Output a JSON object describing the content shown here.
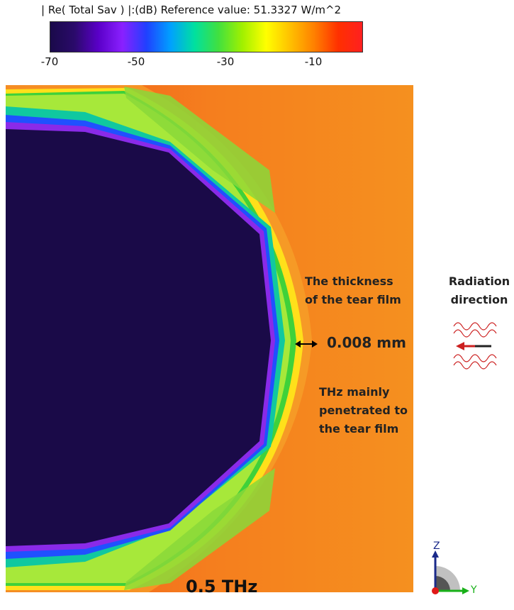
{
  "colorbar": {
    "title": "| Re( Total Sav ) |:(dB) Reference value: 51.3327 W/m^2",
    "ticks": [
      "-70",
      "-50",
      "-30",
      "-10"
    ],
    "min": -70,
    "max": 0,
    "tick_values": [
      -70,
      -50,
      -30,
      -10
    ],
    "gradient_colors": [
      "#1a0a4a",
      "#2a0a6a",
      "#5a00c8",
      "#8a20ff",
      "#2040ff",
      "#00a0ff",
      "#00e0a0",
      "#40e040",
      "#a0f000",
      "#ffff00",
      "#ffc000",
      "#ff8000",
      "#ff3000",
      "#ff2020"
    ]
  },
  "annotations": {
    "thickness_label_line1": "The thickness",
    "thickness_label_line2": "of the tear film",
    "thickness_value": "0.008 mm",
    "thz_line1": "THz mainly",
    "thz_line2": "penetrated to",
    "thz_line3": "the tear film",
    "frequency": "0.5 THz",
    "radiation_line1": "Radiation",
    "radiation_line2": "direction"
  },
  "axes": {
    "z_label": "Z",
    "y_label": "Y"
  },
  "colors": {
    "background_field": "#f58a1e",
    "eye_interior": "#1a0a48",
    "arrow": "#cc2020"
  }
}
